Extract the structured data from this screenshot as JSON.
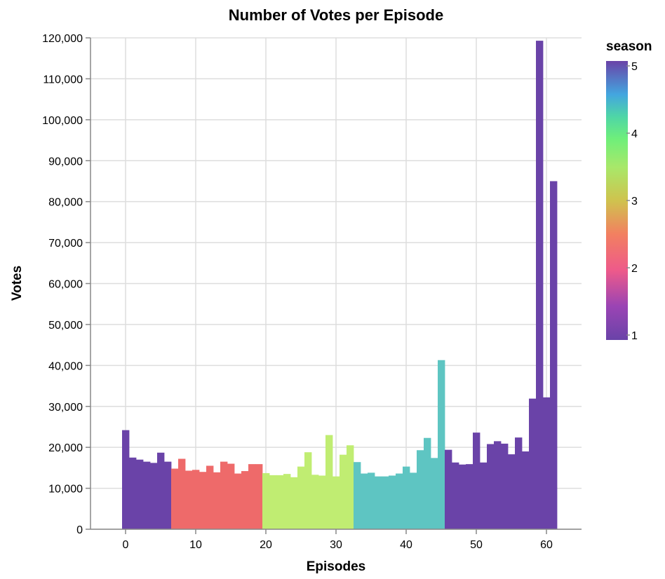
{
  "chart_data": {
    "type": "bar",
    "title": "Number of Votes per Episode",
    "xlabel": "Episodes",
    "ylabel": "Votes",
    "xlim": [
      -5,
      65
    ],
    "ylim": [
      0,
      120000
    ],
    "x_ticks": [
      0,
      10,
      20,
      30,
      40,
      50,
      60
    ],
    "x_tick_labels": [
      "0",
      "10",
      "20",
      "30",
      "40",
      "50",
      "60"
    ],
    "y_ticks": [
      0,
      10000,
      20000,
      30000,
      40000,
      50000,
      60000,
      70000,
      80000,
      90000,
      100000,
      110000,
      120000
    ],
    "y_tick_labels": [
      "0",
      "10,000",
      "20,000",
      "30,000",
      "40,000",
      "50,000",
      "60,000",
      "70,000",
      "80,000",
      "90,000",
      "100,000",
      "110,000",
      "120,000"
    ],
    "grid": true,
    "legend": {
      "title": "season",
      "position": "right",
      "labels": [
        "5",
        "4",
        "3",
        "2",
        "1"
      ],
      "label_values": [
        5,
        4,
        3,
        2,
        1
      ],
      "domain": [
        1,
        5
      ]
    },
    "season_colors": {
      "1": "#6a43a8",
      "2": "#ee6a6a",
      "3": "#c0ed72",
      "4": "#5ec5c2",
      "5": "#6a43a8"
    },
    "episodes": [
      0,
      1,
      2,
      3,
      4,
      5,
      6,
      7,
      8,
      9,
      10,
      11,
      12,
      13,
      14,
      15,
      16,
      17,
      18,
      19,
      20,
      21,
      22,
      23,
      24,
      25,
      26,
      27,
      28,
      29,
      30,
      31,
      32,
      33,
      34,
      35,
      36,
      37,
      38,
      39,
      40,
      41,
      42,
      43,
      44,
      45,
      46,
      47,
      48,
      49,
      50,
      51,
      52,
      53,
      54,
      55,
      56,
      57,
      58,
      59,
      60,
      61
    ],
    "seasons": [
      1,
      1,
      1,
      1,
      1,
      1,
      1,
      2,
      2,
      2,
      2,
      2,
      2,
      2,
      2,
      2,
      2,
      2,
      2,
      2,
      3,
      3,
      3,
      3,
      3,
      3,
      3,
      3,
      3,
      3,
      3,
      3,
      3,
      4,
      4,
      4,
      4,
      4,
      4,
      4,
      4,
      4,
      4,
      4,
      4,
      4,
      5,
      5,
      5,
      5,
      5,
      5,
      5,
      5,
      5,
      5,
      5,
      5,
      5,
      5,
      5,
      5
    ],
    "votes": [
      24200,
      17500,
      17000,
      16500,
      16200,
      18700,
      16500,
      14800,
      17200,
      14300,
      14500,
      14000,
      15500,
      13900,
      16500,
      16000,
      13600,
      14200,
      15900,
      15900,
      13700,
      13200,
      13200,
      13500,
      12700,
      15300,
      18800,
      13300,
      13100,
      23000,
      12900,
      18200,
      20500,
      16400,
      13600,
      13800,
      12900,
      12900,
      13100,
      13600,
      15300,
      13800,
      19300,
      22300,
      17400,
      41300,
      19400,
      16300,
      15800,
      15900,
      23600,
      16300,
      20800,
      21500,
      20900,
      18300,
      22400,
      19000,
      31900,
      119300,
      32200,
      85000
    ]
  }
}
